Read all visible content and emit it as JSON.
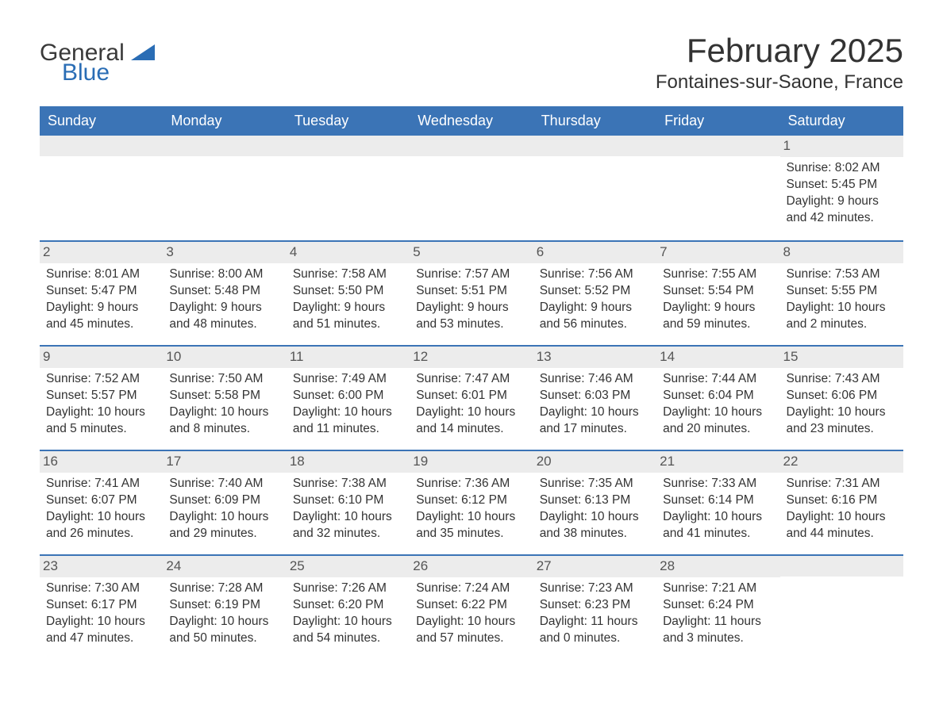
{
  "brand": {
    "word1": "General",
    "word2": "Blue",
    "logo_color": "#2a6db5",
    "text_color": "#3a3a3a"
  },
  "title": "February 2025",
  "location": "Fontaines-sur-Saone, France",
  "colors": {
    "header_bg": "#3b74b6",
    "header_text": "#ffffff",
    "daynum_bg": "#ececec",
    "daynum_text": "#555555",
    "body_text": "#333333",
    "week_border": "#3b74b6",
    "page_bg": "#ffffff"
  },
  "typography": {
    "title_fontsize": 42,
    "subtitle_fontsize": 24,
    "day_header_fontsize": 18,
    "cell_fontsize": 15.5
  },
  "day_names": [
    "Sunday",
    "Monday",
    "Tuesday",
    "Wednesday",
    "Thursday",
    "Friday",
    "Saturday"
  ],
  "labels": {
    "sunrise": "Sunrise:",
    "sunset": "Sunset:",
    "daylight": "Daylight:"
  },
  "weeks": [
    [
      null,
      null,
      null,
      null,
      null,
      null,
      {
        "day": "1",
        "sunrise": "8:02 AM",
        "sunset": "5:45 PM",
        "daylight": "9 hours and 42 minutes."
      }
    ],
    [
      {
        "day": "2",
        "sunrise": "8:01 AM",
        "sunset": "5:47 PM",
        "daylight": "9 hours and 45 minutes."
      },
      {
        "day": "3",
        "sunrise": "8:00 AM",
        "sunset": "5:48 PM",
        "daylight": "9 hours and 48 minutes."
      },
      {
        "day": "4",
        "sunrise": "7:58 AM",
        "sunset": "5:50 PM",
        "daylight": "9 hours and 51 minutes."
      },
      {
        "day": "5",
        "sunrise": "7:57 AM",
        "sunset": "5:51 PM",
        "daylight": "9 hours and 53 minutes."
      },
      {
        "day": "6",
        "sunrise": "7:56 AM",
        "sunset": "5:52 PM",
        "daylight": "9 hours and 56 minutes."
      },
      {
        "day": "7",
        "sunrise": "7:55 AM",
        "sunset": "5:54 PM",
        "daylight": "9 hours and 59 minutes."
      },
      {
        "day": "8",
        "sunrise": "7:53 AM",
        "sunset": "5:55 PM",
        "daylight": "10 hours and 2 minutes."
      }
    ],
    [
      {
        "day": "9",
        "sunrise": "7:52 AM",
        "sunset": "5:57 PM",
        "daylight": "10 hours and 5 minutes."
      },
      {
        "day": "10",
        "sunrise": "7:50 AM",
        "sunset": "5:58 PM",
        "daylight": "10 hours and 8 minutes."
      },
      {
        "day": "11",
        "sunrise": "7:49 AM",
        "sunset": "6:00 PM",
        "daylight": "10 hours and 11 minutes."
      },
      {
        "day": "12",
        "sunrise": "7:47 AM",
        "sunset": "6:01 PM",
        "daylight": "10 hours and 14 minutes."
      },
      {
        "day": "13",
        "sunrise": "7:46 AM",
        "sunset": "6:03 PM",
        "daylight": "10 hours and 17 minutes."
      },
      {
        "day": "14",
        "sunrise": "7:44 AM",
        "sunset": "6:04 PM",
        "daylight": "10 hours and 20 minutes."
      },
      {
        "day": "15",
        "sunrise": "7:43 AM",
        "sunset": "6:06 PM",
        "daylight": "10 hours and 23 minutes."
      }
    ],
    [
      {
        "day": "16",
        "sunrise": "7:41 AM",
        "sunset": "6:07 PM",
        "daylight": "10 hours and 26 minutes."
      },
      {
        "day": "17",
        "sunrise": "7:40 AM",
        "sunset": "6:09 PM",
        "daylight": "10 hours and 29 minutes."
      },
      {
        "day": "18",
        "sunrise": "7:38 AM",
        "sunset": "6:10 PM",
        "daylight": "10 hours and 32 minutes."
      },
      {
        "day": "19",
        "sunrise": "7:36 AM",
        "sunset": "6:12 PM",
        "daylight": "10 hours and 35 minutes."
      },
      {
        "day": "20",
        "sunrise": "7:35 AM",
        "sunset": "6:13 PM",
        "daylight": "10 hours and 38 minutes."
      },
      {
        "day": "21",
        "sunrise": "7:33 AM",
        "sunset": "6:14 PM",
        "daylight": "10 hours and 41 minutes."
      },
      {
        "day": "22",
        "sunrise": "7:31 AM",
        "sunset": "6:16 PM",
        "daylight": "10 hours and 44 minutes."
      }
    ],
    [
      {
        "day": "23",
        "sunrise": "7:30 AM",
        "sunset": "6:17 PM",
        "daylight": "10 hours and 47 minutes."
      },
      {
        "day": "24",
        "sunrise": "7:28 AM",
        "sunset": "6:19 PM",
        "daylight": "10 hours and 50 minutes."
      },
      {
        "day": "25",
        "sunrise": "7:26 AM",
        "sunset": "6:20 PM",
        "daylight": "10 hours and 54 minutes."
      },
      {
        "day": "26",
        "sunrise": "7:24 AM",
        "sunset": "6:22 PM",
        "daylight": "10 hours and 57 minutes."
      },
      {
        "day": "27",
        "sunrise": "7:23 AM",
        "sunset": "6:23 PM",
        "daylight": "11 hours and 0 minutes."
      },
      {
        "day": "28",
        "sunrise": "7:21 AM",
        "sunset": "6:24 PM",
        "daylight": "11 hours and 3 minutes."
      },
      null
    ]
  ]
}
